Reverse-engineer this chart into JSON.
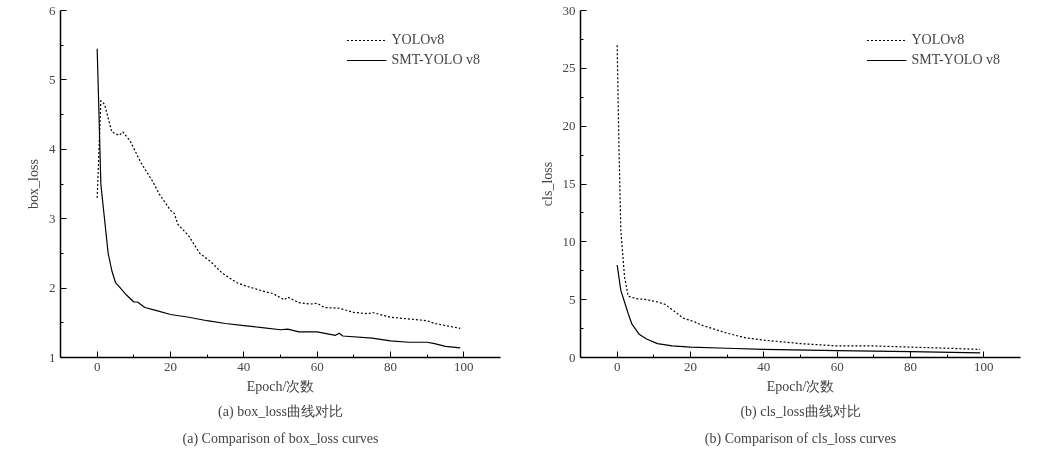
{
  "chart_data": [
    {
      "type": "line",
      "xlabel": "Epoch/次数",
      "ylabel": "box_loss",
      "annotations": [
        "(a) box_loss曲线对比",
        "(a) Comparison of box_loss curves"
      ],
      "xlim": [
        -10,
        110
      ],
      "xticks": [
        0,
        {
          "value": 10,
          "label": null
        },
        20,
        {
          "value": 30,
          "label": null
        },
        40,
        {
          "value": 50,
          "label": null
        },
        60,
        {
          "value": 70,
          "label": null
        },
        80,
        {
          "value": 90,
          "label": null
        },
        100
      ],
      "ylim": [
        1,
        6
      ],
      "yticks": [
        1,
        {
          "value": 1.5,
          "label": null
        },
        2,
        {
          "value": 2.5,
          "label": null
        },
        3,
        {
          "value": 3.5,
          "label": null
        },
        4,
        {
          "value": 4.5,
          "label": null
        },
        5,
        {
          "value": 5.5,
          "label": null
        },
        6
      ],
      "grid": false,
      "legend": "top right",
      "marker": "none",
      "series": [
        {
          "name": "YOLOv8",
          "color": "#000000",
          "line_style": "dotted",
          "x": [
            0,
            1,
            2,
            4,
            6,
            7,
            9,
            12,
            15,
            17,
            20,
            21,
            22,
            25,
            28,
            31,
            34,
            38,
            40,
            45,
            48,
            51,
            52,
            55,
            58,
            60,
            62,
            66,
            70,
            74,
            75,
            80,
            84,
            90,
            92,
            96,
            99
          ],
          "values": [
            3.3,
            4.7,
            4.65,
            4.25,
            4.2,
            4.25,
            4.12,
            3.8,
            3.55,
            3.35,
            3.12,
            3.08,
            2.92,
            2.75,
            2.5,
            2.38,
            2.22,
            2.08,
            2.04,
            1.96,
            1.92,
            1.83,
            1.87,
            1.79,
            1.77,
            1.78,
            1.72,
            1.71,
            1.65,
            1.63,
            1.65,
            1.58,
            1.56,
            1.53,
            1.49,
            1.45,
            1.42
          ]
        },
        {
          "name": "SMT-YOLO v8",
          "color": "#000000",
          "line_style": "solid",
          "x": [
            0,
            0.5,
            1,
            2,
            3,
            4,
            5,
            6,
            8,
            10,
            11,
            13,
            16,
            20,
            25,
            30,
            35,
            40,
            45,
            50,
            52,
            55,
            60,
            65,
            66,
            67,
            75,
            80,
            85,
            90,
            92,
            95,
            99
          ],
          "values": [
            5.45,
            4.5,
            3.5,
            3.0,
            2.5,
            2.25,
            2.08,
            2.02,
            1.9,
            1.8,
            1.8,
            1.72,
            1.68,
            1.62,
            1.58,
            1.53,
            1.49,
            1.46,
            1.43,
            1.4,
            1.41,
            1.37,
            1.37,
            1.32,
            1.35,
            1.31,
            1.28,
            1.24,
            1.22,
            1.22,
            1.2,
            1.16,
            1.14
          ]
        }
      ]
    },
    {
      "type": "line",
      "xlabel": "Epoch/次数",
      "ylabel": "cls_loss",
      "annotations": [
        "(b) cls_loss曲线对比",
        "(b) Comparison of cls_loss curves"
      ],
      "xlim": [
        -10,
        110
      ],
      "xticks": [
        0,
        {
          "value": 10,
          "label": null
        },
        20,
        {
          "value": 30,
          "label": null
        },
        40,
        {
          "value": 50,
          "label": null
        },
        60,
        {
          "value": 70,
          "label": null
        },
        80,
        {
          "value": 90,
          "label": null
        },
        100
      ],
      "ylim": [
        0,
        30
      ],
      "yticks": [
        0,
        {
          "value": 2.5,
          "label": null
        },
        5,
        {
          "value": 7.5,
          "label": null
        },
        10,
        {
          "value": 12.5,
          "label": null
        },
        15,
        {
          "value": 17.5,
          "label": null
        },
        20,
        {
          "value": 22.5,
          "label": null
        },
        25,
        {
          "value": 27.5,
          "label": null
        },
        30
      ],
      "grid": false,
      "legend": "top right",
      "marker": "none",
      "series": [
        {
          "name": "YOLOv8",
          "color": "#000000",
          "line_style": "dotted",
          "x": [
            0,
            0.5,
            1,
            2,
            3,
            5,
            8,
            11,
            13,
            16,
            18,
            21,
            23,
            26,
            30,
            35,
            40,
            50,
            60,
            70,
            80,
            90,
            99
          ],
          "values": [
            27,
            18,
            11,
            7,
            5.3,
            5.1,
            5.0,
            4.8,
            4.6,
            3.9,
            3.4,
            3.1,
            2.8,
            2.5,
            2.1,
            1.7,
            1.5,
            1.2,
            1.0,
            1.0,
            0.9,
            0.8,
            0.7
          ]
        },
        {
          "name": "SMT-YOLO v8",
          "color": "#000000",
          "line_style": "solid",
          "x": [
            0,
            1,
            3,
            4,
            6,
            8,
            11,
            15,
            20,
            30,
            40,
            60,
            80,
            99
          ],
          "values": [
            8,
            5.8,
            3.8,
            2.9,
            2.0,
            1.6,
            1.2,
            1.0,
            0.9,
            0.8,
            0.7,
            0.6,
            0.5,
            0.4
          ]
        }
      ]
    }
  ]
}
